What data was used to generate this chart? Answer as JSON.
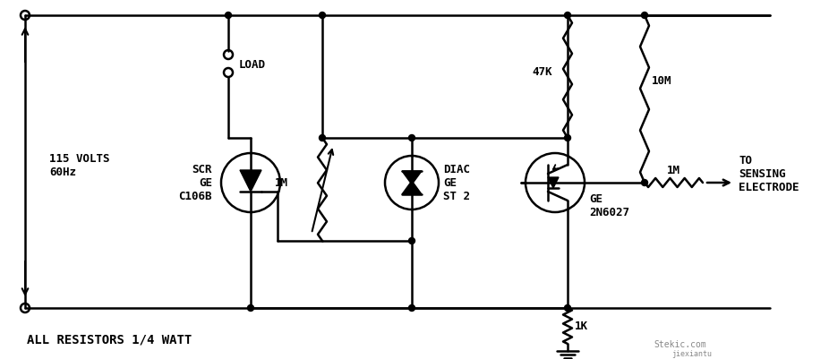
{
  "bg_color": "#ffffff",
  "line_color": "#000000",
  "annotation": "ALL RESISTORS 1/4 WATT",
  "label_115v": "115 VOLTS\n60Hz",
  "label_load": "LOAD",
  "label_scr": "SCR\nGE\nC106B",
  "label_1m_res": "1M",
  "label_diac": "DIAC\nGE\nST 2",
  "label_47k": "47K",
  "label_10m": "10M",
  "label_1k": "1K",
  "label_1m_out": "1M",
  "label_ge": "GE\n2N6027",
  "label_to": "TO\nSENSING\nELECTRODE",
  "watermark1": "Stekic.com",
  "watermark2": "jiexiantu"
}
